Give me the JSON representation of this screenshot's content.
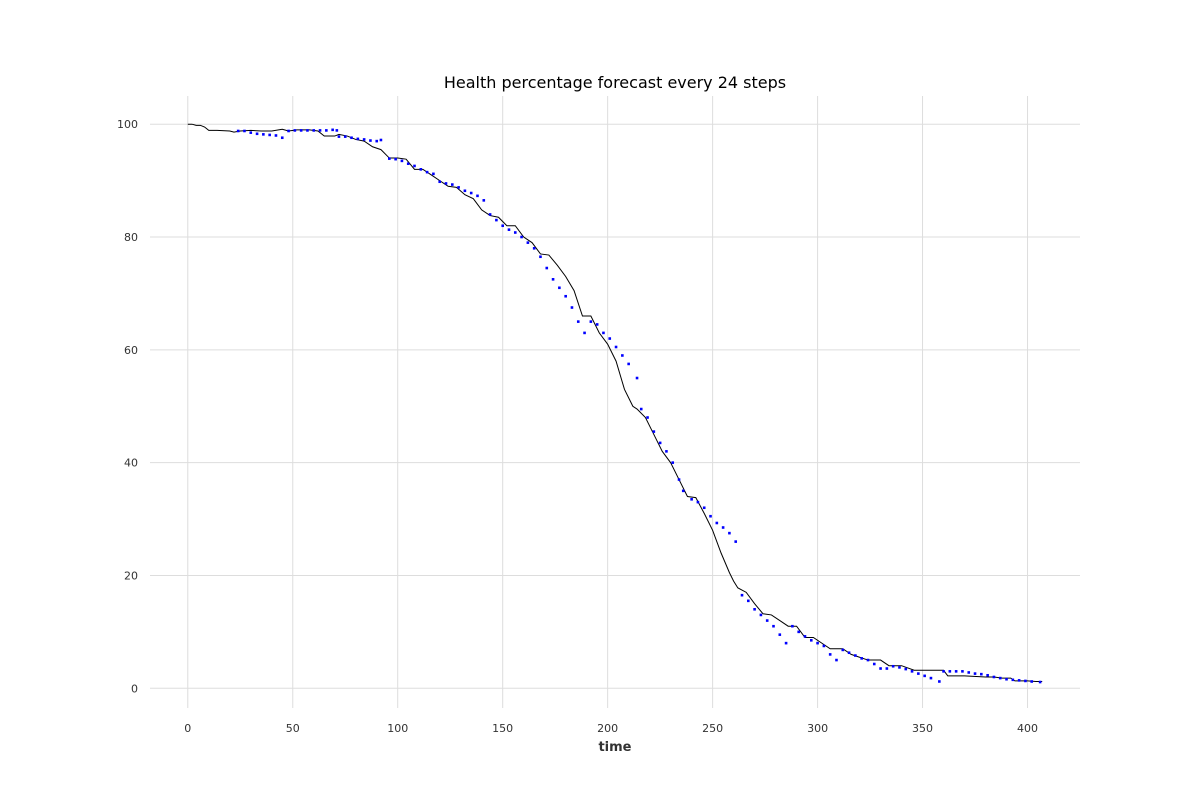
{
  "chart_data": {
    "type": "line",
    "title": "Health percentage forecast every 24 steps",
    "xlabel": "time",
    "ylabel": "",
    "xlim": [
      -18,
      425
    ],
    "ylim": [
      -3.5,
      105
    ],
    "xticks": [
      0,
      50,
      100,
      150,
      200,
      250,
      300,
      350,
      400
    ],
    "yticks": [
      0,
      20,
      40,
      60,
      80,
      100
    ],
    "grid": true,
    "legend": "none",
    "colors": {
      "actual": "#000000",
      "forecast": "#0000ff"
    },
    "series": [
      {
        "style": "solid-line",
        "color": "#000000",
        "points": [
          [
            0,
            100
          ],
          [
            2,
            100
          ],
          [
            4,
            99.8
          ],
          [
            6,
            99.8
          ],
          [
            8,
            99.5
          ],
          [
            10,
            98.9
          ],
          [
            14,
            98.9
          ],
          [
            20,
            98.8
          ],
          [
            22,
            98.6
          ],
          [
            25,
            98.8
          ],
          [
            30,
            98.9
          ],
          [
            35,
            98.8
          ],
          [
            40,
            98.8
          ],
          [
            45,
            99.1
          ],
          [
            48,
            98.8
          ],
          [
            52,
            99
          ],
          [
            58,
            99
          ],
          [
            62,
            98.8
          ],
          [
            65,
            97.9
          ],
          [
            70,
            97.9
          ],
          [
            72,
            98.2
          ],
          [
            76,
            97.9
          ],
          [
            80,
            97.3
          ],
          [
            84,
            97
          ],
          [
            88,
            96
          ],
          [
            92,
            95.5
          ],
          [
            96,
            94
          ],
          [
            100,
            94
          ],
          [
            104,
            93.8
          ],
          [
            108,
            92
          ],
          [
            112,
            92
          ],
          [
            116,
            91
          ],
          [
            120,
            90
          ],
          [
            124,
            89
          ],
          [
            128,
            88.8
          ],
          [
            132,
            87.5
          ],
          [
            136,
            86.8
          ],
          [
            140,
            84.8
          ],
          [
            144,
            83.8
          ],
          [
            148,
            83.5
          ],
          [
            152,
            82
          ],
          [
            156,
            82
          ],
          [
            160,
            80
          ],
          [
            164,
            79
          ],
          [
            168,
            77
          ],
          [
            172,
            76.8
          ],
          [
            176,
            75
          ],
          [
            180,
            73
          ],
          [
            184,
            70.5
          ],
          [
            188,
            66
          ],
          [
            192,
            66
          ],
          [
            196,
            63
          ],
          [
            200,
            61
          ],
          [
            204,
            58
          ],
          [
            208,
            53
          ],
          [
            212,
            50
          ],
          [
            214,
            49.5
          ],
          [
            218,
            48
          ],
          [
            222,
            45
          ],
          [
            226,
            42
          ],
          [
            230,
            40
          ],
          [
            234,
            37
          ],
          [
            238,
            34
          ],
          [
            242,
            33.8
          ],
          [
            246,
            31
          ],
          [
            250,
            28
          ],
          [
            254,
            24
          ],
          [
            258,
            20.5
          ],
          [
            260,
            19
          ],
          [
            262,
            17.8
          ],
          [
            266,
            17
          ],
          [
            270,
            15
          ],
          [
            274,
            13.2
          ],
          [
            278,
            13
          ],
          [
            282,
            12
          ],
          [
            286,
            11
          ],
          [
            290,
            11
          ],
          [
            294,
            9
          ],
          [
            298,
            9
          ],
          [
            302,
            8
          ],
          [
            306,
            7
          ],
          [
            312,
            7
          ],
          [
            316,
            6
          ],
          [
            320,
            5.5
          ],
          [
            324,
            5
          ],
          [
            330,
            5
          ],
          [
            334,
            4
          ],
          [
            340,
            4
          ],
          [
            346,
            3.2
          ],
          [
            350,
            3.2
          ],
          [
            356,
            3.2
          ],
          [
            360,
            3.2
          ],
          [
            362,
            2.2
          ],
          [
            370,
            2.2
          ],
          [
            380,
            2
          ],
          [
            384,
            2
          ],
          [
            388,
            1.8
          ],
          [
            392,
            1.8
          ],
          [
            394,
            1.3
          ],
          [
            400,
            1.3
          ],
          [
            404,
            1.2
          ],
          [
            407,
            1.2
          ]
        ]
      },
      {
        "style": "dotted",
        "color": "#0000ff",
        "points": [
          [
            24,
            98.8
          ],
          [
            27,
            98.8
          ],
          [
            30,
            98.5
          ],
          [
            33,
            98.3
          ],
          [
            36,
            98.2
          ],
          [
            39,
            98.1
          ],
          [
            42,
            98
          ],
          [
            45,
            97.6
          ],
          [
            48,
            98.8
          ],
          [
            51,
            98.9
          ],
          [
            54,
            98.9
          ],
          [
            57,
            98.9
          ],
          [
            60,
            98.9
          ],
          [
            63,
            98.9
          ],
          [
            66,
            98.9
          ],
          [
            69,
            99
          ],
          [
            71,
            98.9
          ],
          [
            72,
            97.8
          ],
          [
            75,
            97.8
          ],
          [
            78,
            97.6
          ],
          [
            81,
            97.4
          ],
          [
            84,
            97.3
          ],
          [
            87,
            97.1
          ],
          [
            90,
            97
          ],
          [
            92,
            97.2
          ],
          [
            96,
            93.9
          ],
          [
            99,
            93.8
          ],
          [
            102,
            93.5
          ],
          [
            105,
            93
          ],
          [
            108,
            92.6
          ],
          [
            111,
            92
          ],
          [
            114,
            91.5
          ],
          [
            117,
            91.2
          ],
          [
            120,
            89.8
          ],
          [
            123,
            89.5
          ],
          [
            126,
            89.3
          ],
          [
            129,
            88.8
          ],
          [
            132,
            88.2
          ],
          [
            135,
            87.8
          ],
          [
            138,
            87.3
          ],
          [
            141,
            86.5
          ],
          [
            144,
            84
          ],
          [
            147,
            83
          ],
          [
            150,
            82
          ],
          [
            153,
            81.3
          ],
          [
            156,
            80.8
          ],
          [
            159,
            80
          ],
          [
            162,
            79
          ],
          [
            165,
            78
          ],
          [
            168,
            76.5
          ],
          [
            171,
            74.5
          ],
          [
            174,
            72.5
          ],
          [
            177,
            71
          ],
          [
            180,
            69.5
          ],
          [
            183,
            67.5
          ],
          [
            186,
            65
          ],
          [
            189,
            63
          ],
          [
            192,
            65
          ],
          [
            195,
            64.5
          ],
          [
            198,
            63
          ],
          [
            201,
            62
          ],
          [
            204,
            60.5
          ],
          [
            207,
            59
          ],
          [
            210,
            57.5
          ],
          [
            214,
            55
          ],
          [
            216,
            49.5
          ],
          [
            219,
            48
          ],
          [
            222,
            45.5
          ],
          [
            225,
            43.5
          ],
          [
            228,
            42
          ],
          [
            231,
            40
          ],
          [
            234,
            37
          ],
          [
            236,
            35
          ],
          [
            240,
            33.5
          ],
          [
            243,
            33
          ],
          [
            246,
            32
          ],
          [
            249,
            30.5
          ],
          [
            252,
            29.3
          ],
          [
            255,
            28.5
          ],
          [
            258,
            27.5
          ],
          [
            261,
            26
          ],
          [
            264,
            16.5
          ],
          [
            267,
            15.5
          ],
          [
            270,
            14
          ],
          [
            273,
            13
          ],
          [
            276,
            12
          ],
          [
            279,
            11
          ],
          [
            282,
            9.5
          ],
          [
            285,
            8
          ],
          [
            288,
            11
          ],
          [
            291,
            10
          ],
          [
            294,
            9.2
          ],
          [
            297,
            8.5
          ],
          [
            300,
            8
          ],
          [
            303,
            7.5
          ],
          [
            306,
            6
          ],
          [
            309,
            5
          ],
          [
            312,
            6.8
          ],
          [
            315,
            6.3
          ],
          [
            318,
            5.8
          ],
          [
            321,
            5.3
          ],
          [
            324,
            5
          ],
          [
            327,
            4.3
          ],
          [
            330,
            3.5
          ],
          [
            333,
            3.5
          ],
          [
            336,
            3.9
          ],
          [
            339,
            3.7
          ],
          [
            342,
            3.4
          ],
          [
            345,
            3
          ],
          [
            348,
            2.6
          ],
          [
            351,
            2.2
          ],
          [
            354,
            1.8
          ],
          [
            358,
            1.2
          ],
          [
            360,
            3
          ],
          [
            363,
            3
          ],
          [
            366,
            3
          ],
          [
            369,
            3
          ],
          [
            372,
            2.8
          ],
          [
            375,
            2.6
          ],
          [
            378,
            2.5
          ],
          [
            381,
            2.3
          ],
          [
            384,
            2
          ],
          [
            387,
            1.8
          ],
          [
            390,
            1.6
          ],
          [
            393,
            1.5
          ],
          [
            396,
            1.4
          ],
          [
            399,
            1.3
          ],
          [
            402,
            1.2
          ],
          [
            406,
            1.1
          ]
        ]
      }
    ]
  }
}
